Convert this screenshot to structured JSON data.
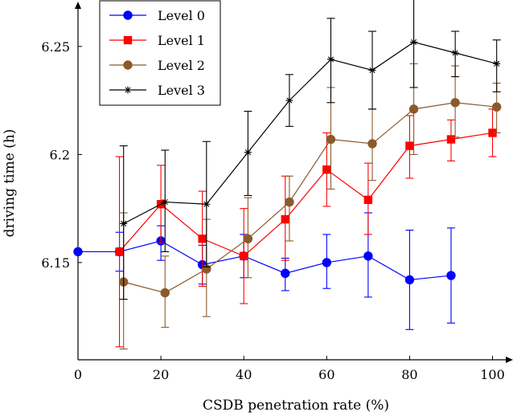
{
  "chart_data": {
    "type": "line",
    "title": "",
    "xlabel": "CSDB penetration rate (%)",
    "ylabel": "driving time (h)",
    "xlim": [
      0,
      103
    ],
    "ylim": [
      6.105,
      6.27
    ],
    "xticks": [
      0,
      20,
      40,
      60,
      80,
      100
    ],
    "xtick_labels": [
      "0",
      "20",
      "40",
      "60",
      "80",
      "100"
    ],
    "yticks": [
      6.15,
      6.2,
      6.25
    ],
    "ytick_labels": [
      "6.15",
      "6.2",
      "6.25"
    ],
    "legend_position": "top-left",
    "grid": false,
    "series": [
      {
        "name": "Level 0",
        "color": "#0000ff",
        "marker": "circle",
        "x": [
          0,
          10,
          20,
          30,
          40,
          50,
          60,
          70,
          80,
          90
        ],
        "y": [
          6.155,
          6.155,
          6.16,
          6.149,
          6.153,
          6.145,
          6.15,
          6.153,
          6.142,
          6.144
        ],
        "err_low": [
          6.155,
          6.146,
          6.151,
          6.14,
          6.143,
          6.137,
          6.138,
          6.134,
          6.119,
          6.122
        ],
        "err_high": [
          6.155,
          6.164,
          6.167,
          6.158,
          6.163,
          6.152,
          6.163,
          6.173,
          6.165,
          6.166
        ]
      },
      {
        "name": "Level 1",
        "color": "#ff0000",
        "marker": "square",
        "x": [
          10,
          20,
          30,
          40,
          50,
          60,
          70,
          80,
          90,
          100
        ],
        "y": [
          6.155,
          6.177,
          6.161,
          6.153,
          6.17,
          6.193,
          6.179,
          6.204,
          6.207,
          6.21
        ],
        "err_low": [
          6.111,
          6.159,
          6.139,
          6.131,
          6.151,
          6.176,
          6.163,
          6.189,
          6.197,
          6.199
        ],
        "err_high": [
          6.199,
          6.195,
          6.183,
          6.175,
          6.19,
          6.21,
          6.196,
          6.218,
          6.216,
          6.221
        ]
      },
      {
        "name": "Level 2",
        "color": "#8b5a2b",
        "marker": "circle",
        "x": [
          11,
          21,
          31,
          41,
          51,
          61,
          71,
          81,
          91,
          101
        ],
        "y": [
          6.141,
          6.136,
          6.147,
          6.161,
          6.178,
          6.207,
          6.205,
          6.221,
          6.224,
          6.222
        ],
        "err_low": [
          6.11,
          6.12,
          6.125,
          6.143,
          6.16,
          6.184,
          6.188,
          6.2,
          6.208,
          6.21
        ],
        "err_high": [
          6.173,
          6.153,
          6.17,
          6.18,
          6.19,
          6.231,
          6.221,
          6.242,
          6.241,
          6.233
        ]
      },
      {
        "name": "Level 3",
        "color": "#000000",
        "marker": "star",
        "x": [
          11,
          21,
          31,
          41,
          51,
          61,
          71,
          81,
          91,
          101
        ],
        "y": [
          6.168,
          6.178,
          6.177,
          6.201,
          6.225,
          6.244,
          6.239,
          6.252,
          6.247,
          6.242
        ],
        "err_low": [
          6.133,
          6.155,
          6.148,
          6.181,
          6.213,
          6.224,
          6.221,
          6.231,
          6.236,
          6.229
        ],
        "err_high": [
          6.204,
          6.202,
          6.206,
          6.22,
          6.237,
          6.263,
          6.257,
          6.272,
          6.257,
          6.253
        ]
      }
    ]
  }
}
